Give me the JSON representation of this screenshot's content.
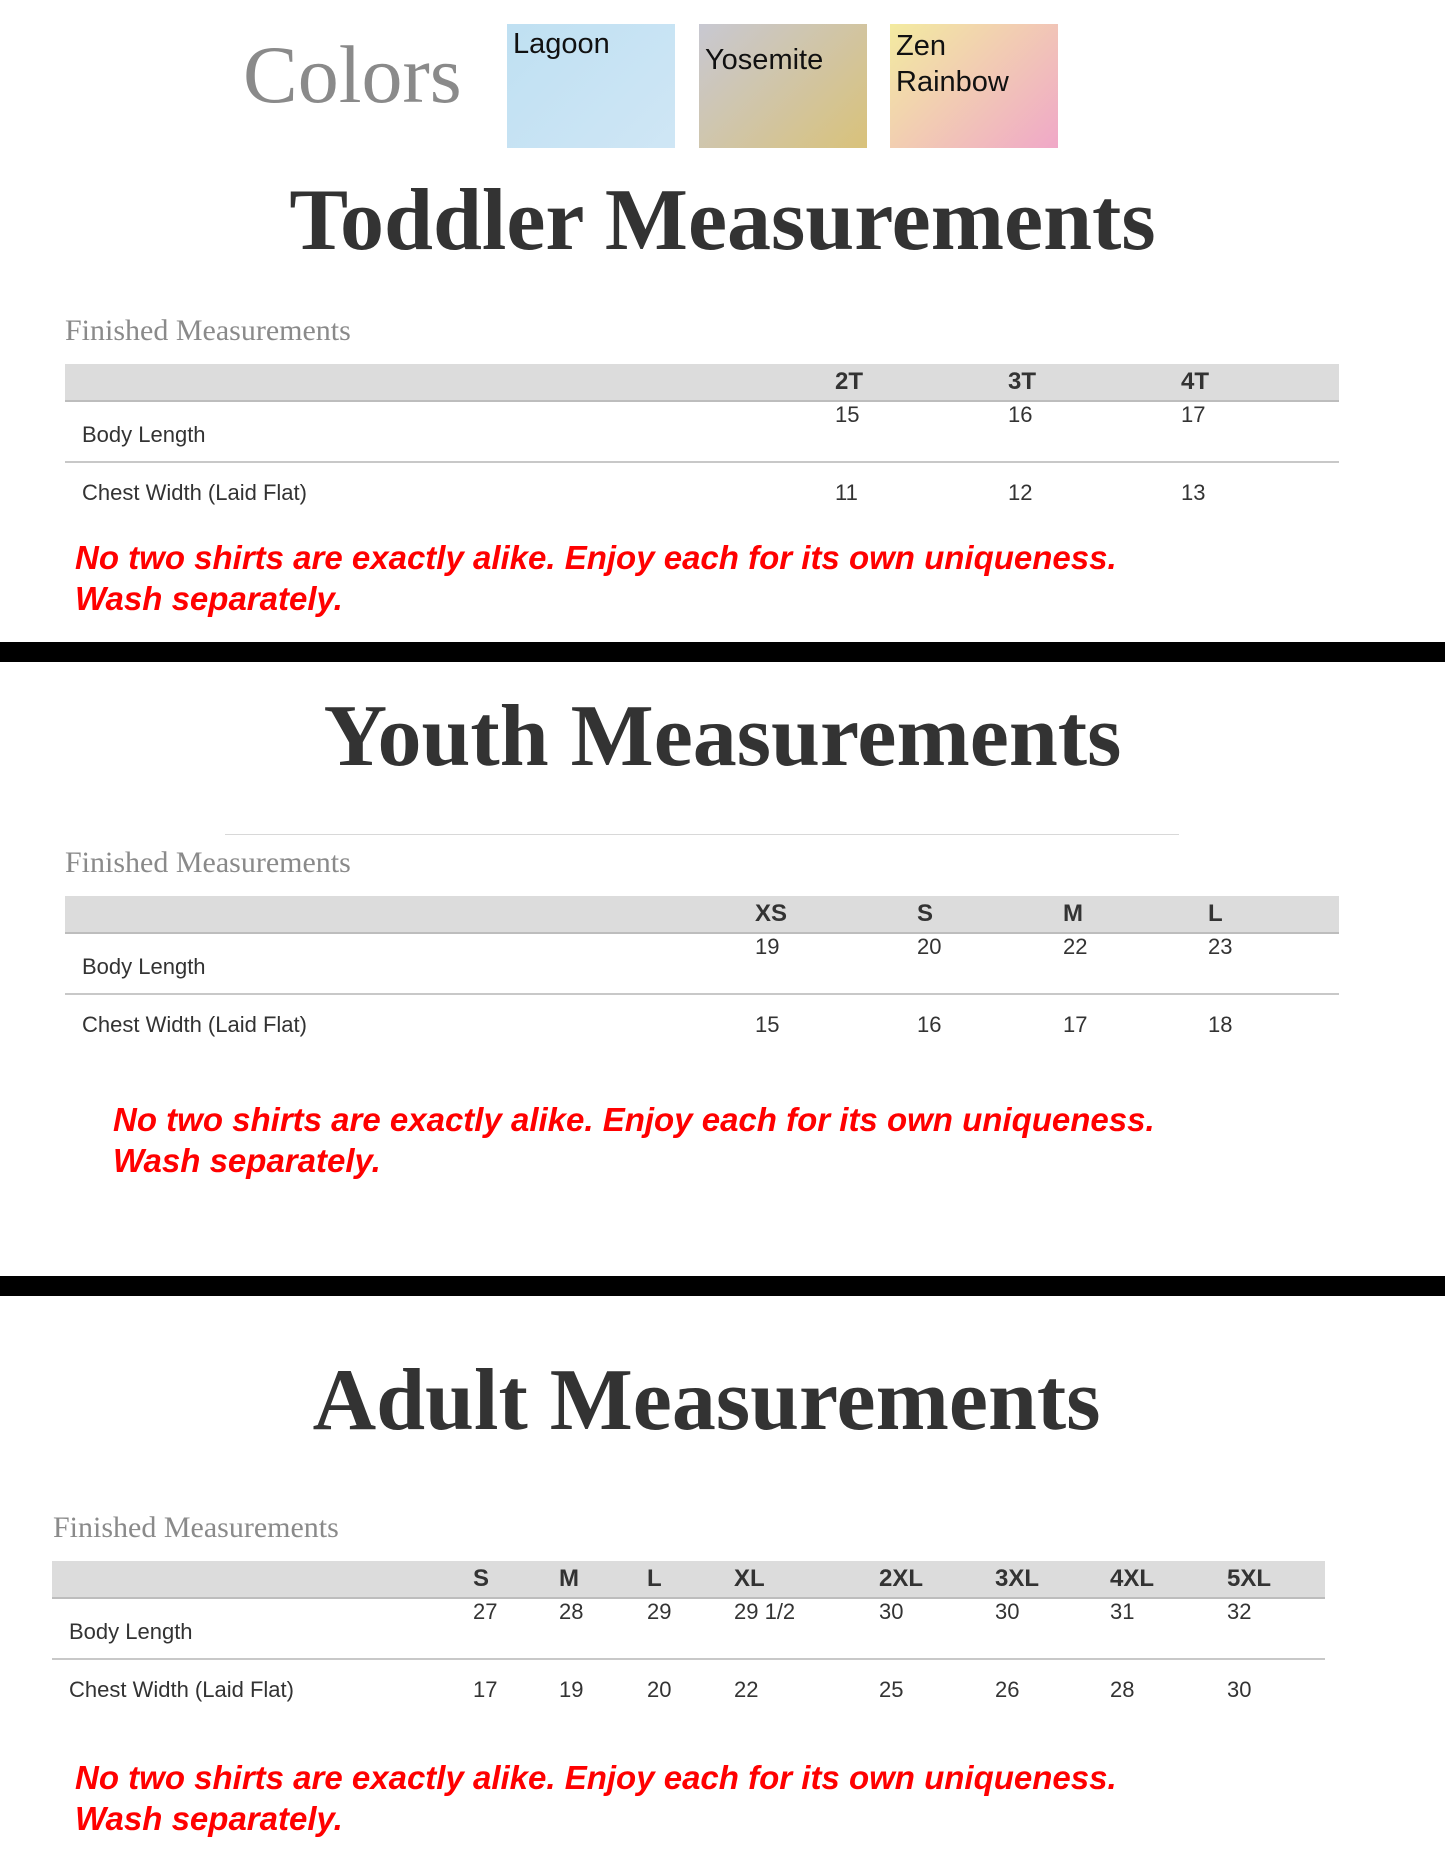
{
  "colors": {
    "title": "Colors",
    "swatches": [
      {
        "name": "Lagoon",
        "gradient": [
          "#bfe0f2",
          "#cfe6f5"
        ]
      },
      {
        "name": "Yosemite",
        "gradient": [
          "#c8c8d2",
          "#d9c27a"
        ]
      },
      {
        "name": "Zen\nRainbow",
        "gradient": [
          "#f3eba0",
          "#f0a8c8"
        ]
      }
    ]
  },
  "sections": [
    {
      "title": "Toddler Measurements",
      "subtitle": "Finished Measurements",
      "sizes": [
        "2T",
        "3T",
        "4T"
      ],
      "rows": [
        {
          "label": "Body Length",
          "values": [
            "15",
            "16",
            "17"
          ]
        },
        {
          "label": "Chest Width (Laid Flat)",
          "values": [
            "11",
            "12",
            "13"
          ]
        }
      ],
      "note": [
        "No two shirts are exactly alike. Enjoy each for its own uniqueness.",
        "Wash separately."
      ]
    },
    {
      "title": "Youth Measurements",
      "subtitle": "Finished Measurements",
      "sizes": [
        "XS",
        "S",
        "M",
        "L"
      ],
      "rows": [
        {
          "label": "Body Length",
          "values": [
            "19",
            "20",
            "22",
            "23"
          ]
        },
        {
          "label": "Chest Width (Laid Flat)",
          "values": [
            "15",
            "16",
            "17",
            "18"
          ]
        }
      ],
      "note": [
        "No two shirts are exactly alike. Enjoy each for its own uniqueness.",
        "Wash separately."
      ]
    },
    {
      "title": "Adult Measurements",
      "subtitle": "Finished Measurements",
      "sizes": [
        "S",
        "M",
        "L",
        "XL",
        "2XL",
        "3XL",
        "4XL",
        "5XL"
      ],
      "rows": [
        {
          "label": "Body Length",
          "values": [
            "27",
            "28",
            "29",
            "29 1/2",
            "30",
            "30",
            "31",
            "32"
          ]
        },
        {
          "label": "Chest Width (Laid Flat)",
          "values": [
            "17",
            "19",
            "20",
            "22",
            "25",
            "26",
            "28",
            "30"
          ]
        }
      ],
      "note": [
        "No two shirts are exactly alike. Enjoy each for its own uniqueness.",
        "Wash separately."
      ]
    }
  ],
  "note_color": "#ff0000"
}
